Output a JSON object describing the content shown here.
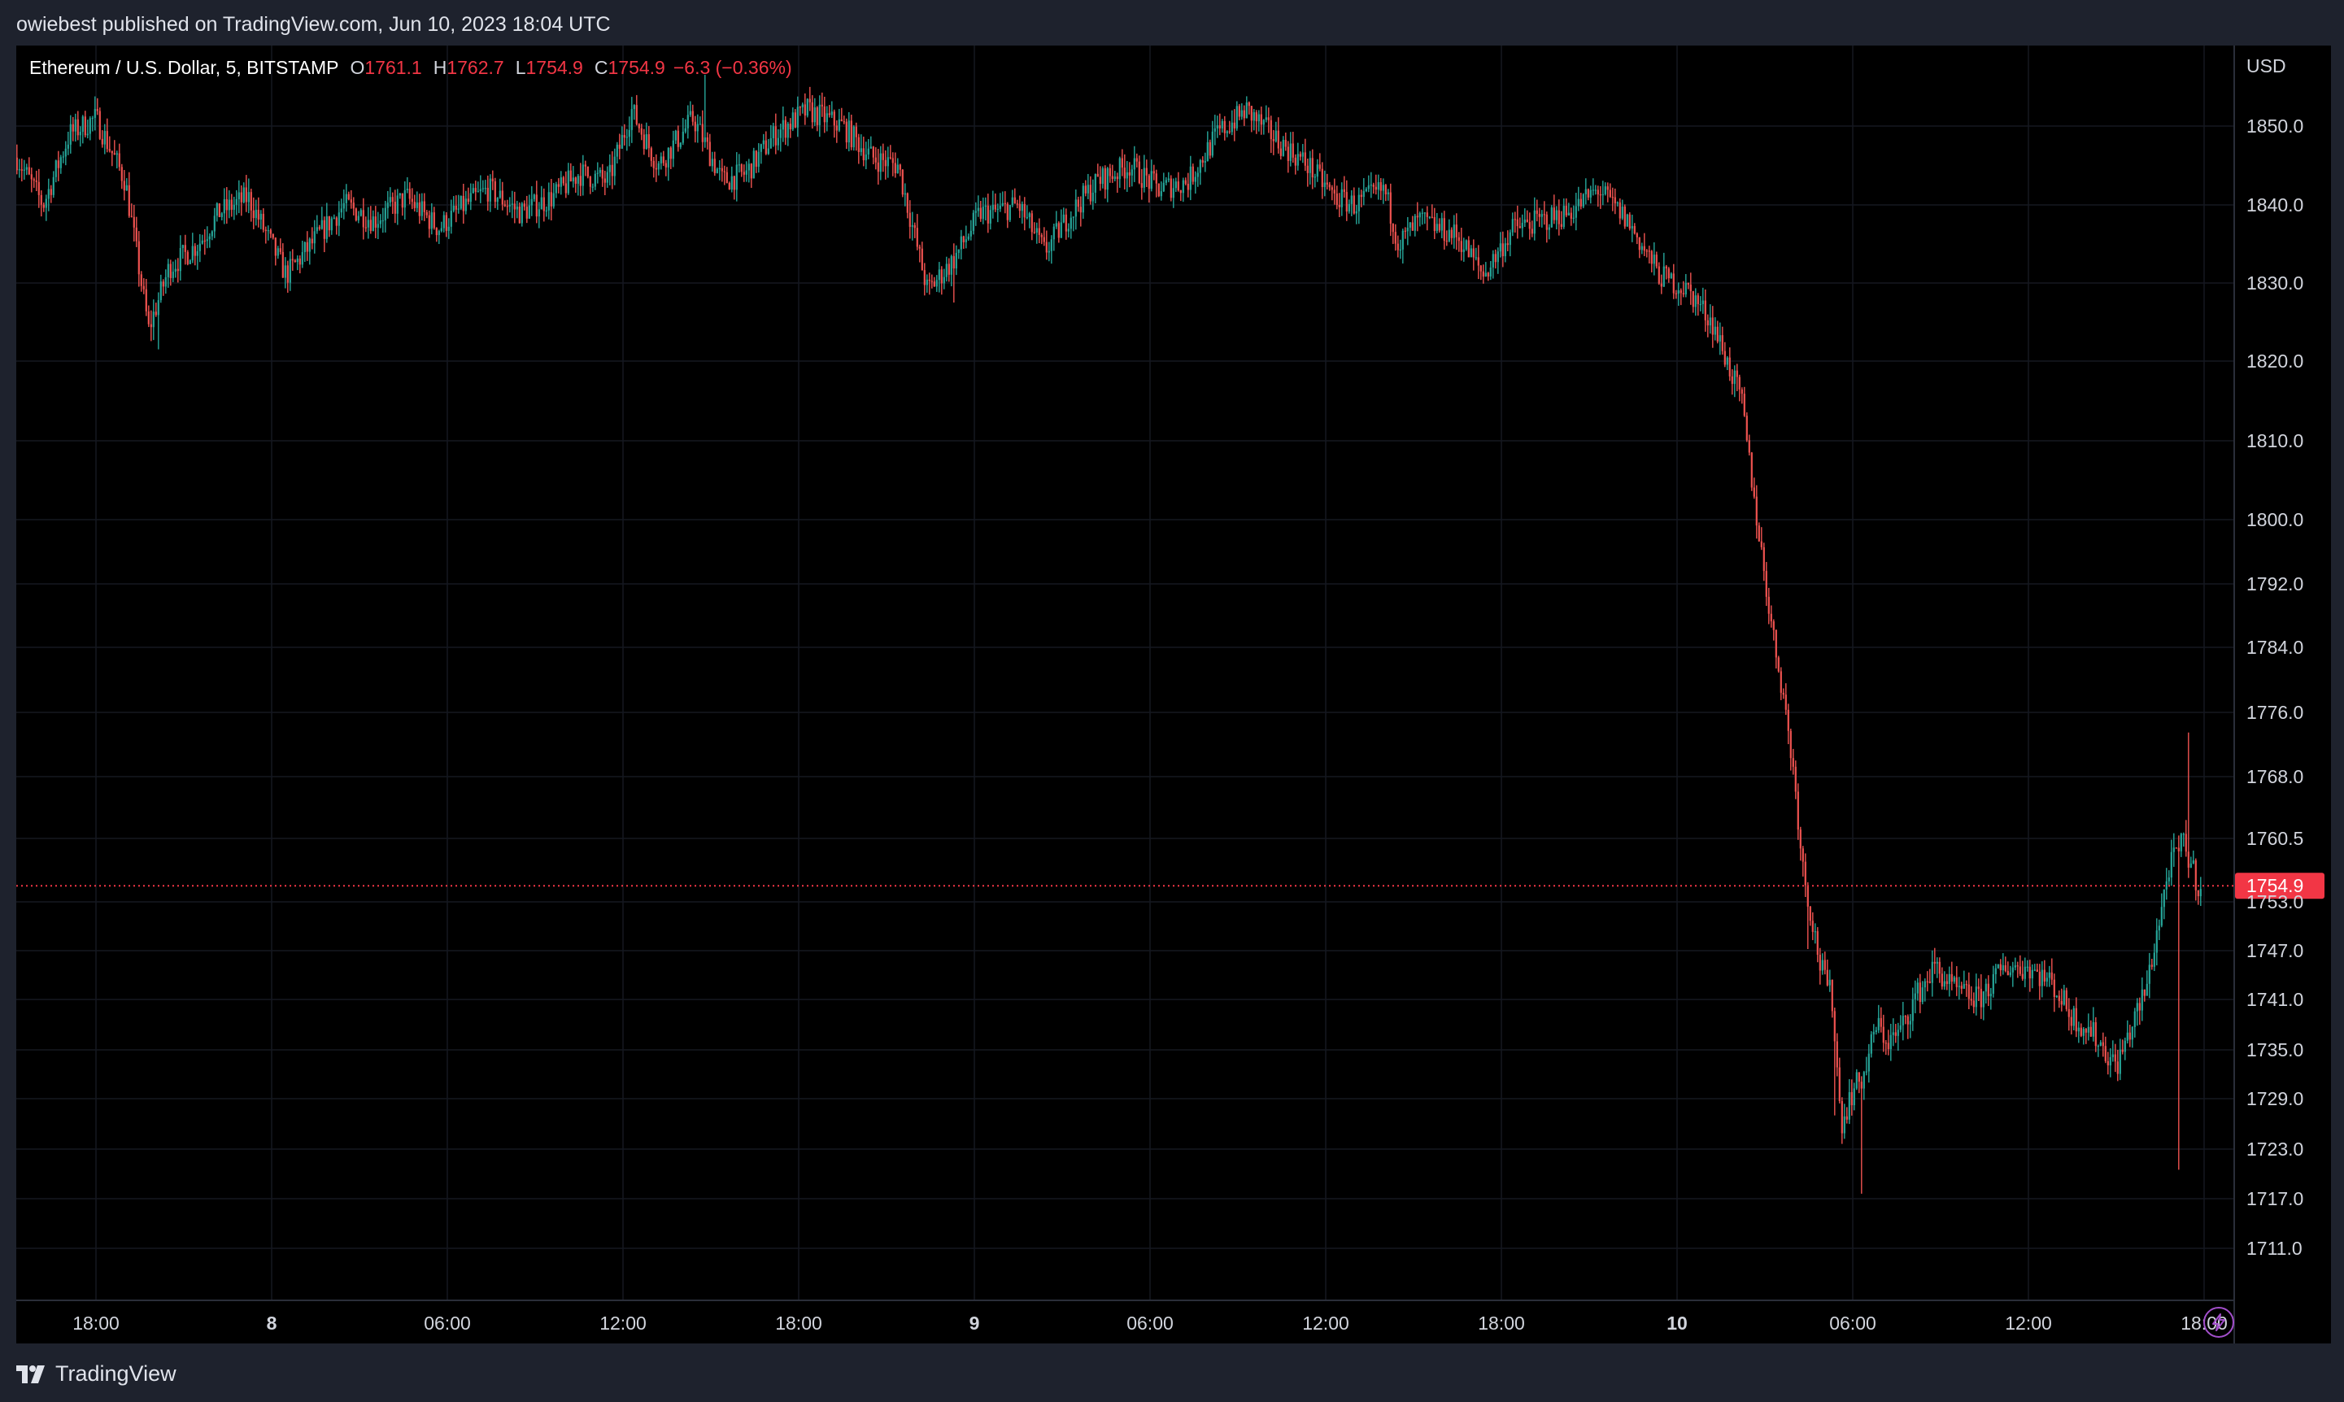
{
  "header": {
    "published": "owiebest published on TradingView.com, Jun 10, 2023 18:04 UTC"
  },
  "legend": {
    "symbol": "Ethereum / U.S. Dollar, 5, BITSTAMP",
    "open_label": "O",
    "open": "1761.1",
    "high_label": "H",
    "high": "1762.7",
    "low_label": "L",
    "low": "1754.9",
    "close_label": "C",
    "close": "1754.9",
    "change": "−6.3 (−0.36%)"
  },
  "footer": {
    "brand": "TradingView",
    "logo_icon": "tradingview-logo-icon",
    "action_icon": "lightning-icon"
  },
  "colors": {
    "up": "#26a69a",
    "down": "#ef5350",
    "price_label": "#f23645",
    "background": "#000000",
    "grid": "#151821"
  },
  "chart_data": {
    "type": "candlestick",
    "currency": "USD",
    "interval": "5",
    "exchange": "BITSTAMP",
    "last_price": 1754.9,
    "last_price_label": "1754.9",
    "y_ticks": [
      "1850.0",
      "1840.0",
      "1830.0",
      "1820.0",
      "1810.0",
      "1800.0",
      "1792.0",
      "1784.0",
      "1776.0",
      "1768.0",
      "1760.5",
      "1753.0",
      "1747.0",
      "1741.0",
      "1735.0",
      "1729.0",
      "1723.0",
      "1717.0",
      "1711.0"
    ],
    "x_ticks": [
      {
        "label": "18:00",
        "bold": false,
        "h": -6
      },
      {
        "label": "8",
        "bold": true,
        "h": 0
      },
      {
        "label": "06:00",
        "bold": false,
        "h": 6
      },
      {
        "label": "12:00",
        "bold": false,
        "h": 12
      },
      {
        "label": "18:00",
        "bold": false,
        "h": 18
      },
      {
        "label": "9",
        "bold": true,
        "h": 24
      },
      {
        "label": "06:00",
        "bold": false,
        "h": 30
      },
      {
        "label": "12:00",
        "bold": false,
        "h": 36
      },
      {
        "label": "18:00",
        "bold": false,
        "h": 42
      },
      {
        "label": "10",
        "bold": true,
        "h": 48
      },
      {
        "label": "06:00",
        "bold": false,
        "h": 54
      },
      {
        "label": "12:00",
        "bold": false,
        "h": 60
      },
      {
        "label": "18:00",
        "bold": false,
        "h": 66
      }
    ],
    "x_range_hours": [
      -8.7,
      66
    ],
    "path_hours": [
      -8.7,
      -7.8,
      -6.9,
      -6.0,
      -5.0,
      -4.2,
      -3.5,
      -2.5,
      -1.8,
      -0.8,
      0.5,
      1.8,
      2.5,
      3.5,
      4.6,
      5.7,
      6.6,
      7.4,
      8.5,
      9.6,
      10.5,
      11.5,
      12.3,
      12.8,
      13.2,
      14.4,
      15.4,
      16.2,
      17.2,
      18.3,
      19.5,
      20.5,
      21.4,
      22.4,
      23.3,
      24.2,
      24.6,
      25.5,
      26.4,
      27.3,
      28.2,
      29.3,
      30.3,
      31.3,
      32.3,
      33.3,
      34.4,
      35.4,
      36.3,
      37.0,
      38.0,
      38.5,
      39.2,
      40.5,
      41.4,
      42.4,
      43.4,
      44.3,
      45.3,
      46.3,
      47.4,
      48.4,
      49.2,
      50.2,
      50.8,
      51.3,
      51.6,
      52.0,
      52.3,
      52.6,
      52.9,
      53.3,
      53.6,
      54.0,
      54.4,
      54.8,
      55.2,
      55.6,
      56.1,
      56.8,
      57.5,
      58.3,
      59.2,
      60.0,
      60.8,
      61.5,
      62.2,
      63.0,
      64.0,
      64.8,
      65.3,
      65.8
    ],
    "path_values": [
      1846,
      1840,
      1849,
      1851,
      1843,
      1824,
      1832,
      1835,
      1839,
      1841,
      1831,
      1837,
      1840,
      1838,
      1841,
      1837,
      1840,
      1842,
      1839,
      1841,
      1844,
      1843,
      1852,
      1848,
      1845,
      1851,
      1843,
      1844,
      1849,
      1852,
      1850,
      1846,
      1845,
      1829,
      1833,
      1839,
      1839,
      1840,
      1834,
      1839,
      1843,
      1845,
      1842,
      1843,
      1849,
      1852,
      1848,
      1845,
      1841,
      1840,
      1842,
      1835,
      1838,
      1836,
      1831,
      1837,
      1838,
      1839,
      1842,
      1838,
      1831,
      1829,
      1825,
      1815,
      1798,
      1785,
      1779,
      1768,
      1757,
      1751,
      1745,
      1741,
      1726,
      1730,
      1732,
      1738,
      1736,
      1737,
      1741,
      1745,
      1742,
      1741,
      1745,
      1745,
      1743,
      1739,
      1737,
      1733,
      1742,
      1757,
      1760,
      1755
    ],
    "extremes": [
      {
        "h": -3.9,
        "v": 1821.5
      },
      {
        "h": 14.8,
        "v": 1856.5
      },
      {
        "h": 23.3,
        "v": 1827.5
      },
      {
        "h": 52.5,
        "v": 1747.2
      },
      {
        "h": 53.4,
        "v": 1727.0
      },
      {
        "h": 54.3,
        "v": 1717.6
      },
      {
        "h": 65.1,
        "v": 1720.5
      },
      {
        "h": 65.5,
        "v": 1773.5
      }
    ],
    "title": "",
    "xlabel": "",
    "ylabel": "USD",
    "grid": true
  }
}
